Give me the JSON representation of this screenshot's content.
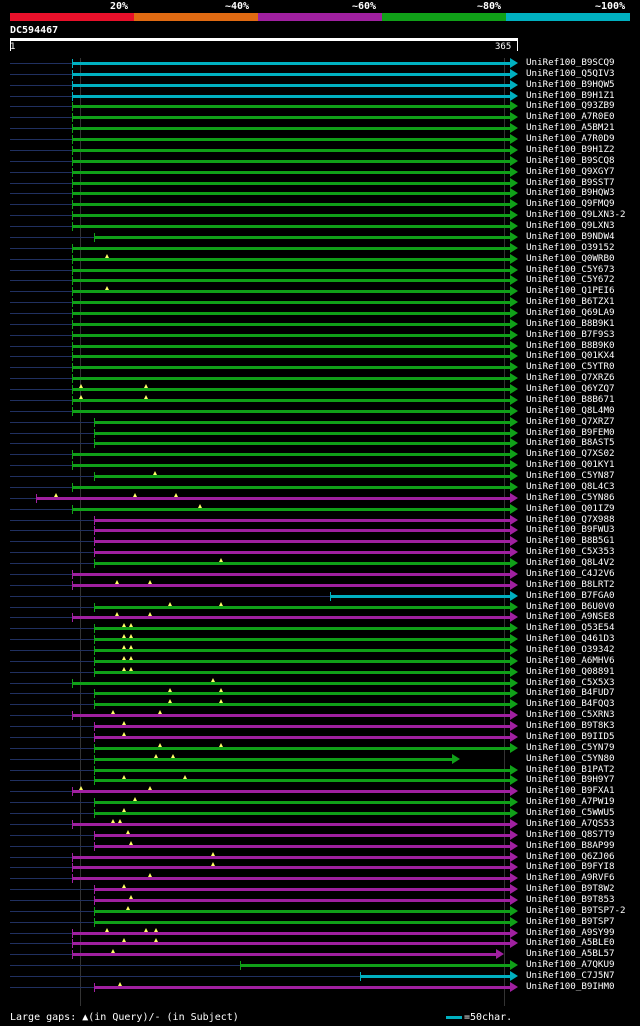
{
  "legend": {
    "labels": [
      "20%",
      "~40%",
      "~60%",
      "~80%",
      "~100%"
    ],
    "colors": [
      "#e8102a",
      "#e06a12",
      "#a020a0",
      "#10a018",
      "#00b0c0"
    ]
  },
  "query": {
    "name": "DC594467",
    "start": "1",
    "end": "365"
  },
  "footer": {
    "gaps_text": "Large gaps: ▲(in Query)/- (in Subject)",
    "scale_text": "=50char."
  },
  "rows": [
    {
      "label": "UniRef100_B9SCQ9",
      "color": "cyan",
      "start": 72,
      "end": 510,
      "arrow": true,
      "gaps": []
    },
    {
      "label": "UniRef100_Q5QIV3",
      "color": "cyan",
      "start": 72,
      "end": 510,
      "arrow": true,
      "gaps": []
    },
    {
      "label": "UniRef100_B9HQW5",
      "color": "cyan",
      "start": 72,
      "end": 510,
      "arrow": true,
      "gaps": []
    },
    {
      "label": "UniRef100_B9H1Z1",
      "color": "cyan",
      "start": 72,
      "end": 510,
      "arrow": true,
      "gaps": []
    },
    {
      "label": "UniRef100_Q93ZB9",
      "color": "green",
      "start": 72,
      "end": 510,
      "arrow": true,
      "gaps": []
    },
    {
      "label": "UniRef100_A7R0E0",
      "color": "green",
      "start": 72,
      "end": 510,
      "arrow": true,
      "gaps": []
    },
    {
      "label": "UniRef100_A5BM21",
      "color": "green",
      "start": 72,
      "end": 510,
      "arrow": true,
      "gaps": []
    },
    {
      "label": "UniRef100_A7R0D9",
      "color": "green",
      "start": 72,
      "end": 510,
      "arrow": true,
      "gaps": []
    },
    {
      "label": "UniRef100_B9H1Z2",
      "color": "green",
      "start": 72,
      "end": 510,
      "arrow": true,
      "gaps": []
    },
    {
      "label": "UniRef100_B9SCQ8",
      "color": "green",
      "start": 72,
      "end": 510,
      "arrow": true,
      "gaps": []
    },
    {
      "label": "UniRef100_Q9XGY7",
      "color": "green",
      "start": 72,
      "end": 510,
      "arrow": true,
      "gaps": []
    },
    {
      "label": "UniRef100_B9SST7",
      "color": "green",
      "start": 72,
      "end": 510,
      "arrow": true,
      "gaps": []
    },
    {
      "label": "UniRef100_B9HQW3",
      "color": "green",
      "start": 72,
      "end": 510,
      "arrow": true,
      "gaps": []
    },
    {
      "label": "UniRef100_Q9FMQ9",
      "color": "green",
      "start": 72,
      "end": 510,
      "arrow": true,
      "gaps": []
    },
    {
      "label": "UniRef100_Q9LXN3-2",
      "color": "green",
      "start": 72,
      "end": 510,
      "arrow": true,
      "gaps": []
    },
    {
      "label": "UniRef100_Q9LXN3",
      "color": "green",
      "start": 72,
      "end": 510,
      "arrow": true,
      "gaps": []
    },
    {
      "label": "UniRef100_B9NDW4",
      "color": "green",
      "start": 94,
      "end": 510,
      "arrow": true,
      "gaps": []
    },
    {
      "label": "UniRef100_O39152",
      "color": "green",
      "start": 72,
      "end": 510,
      "arrow": true,
      "gaps": []
    },
    {
      "label": "UniRef100_Q0WRB0",
      "color": "green",
      "start": 72,
      "end": 510,
      "arrow": true,
      "gaps": [
        107
      ]
    },
    {
      "label": "UniRef100_C5Y673",
      "color": "green",
      "start": 72,
      "end": 510,
      "arrow": true,
      "gaps": []
    },
    {
      "label": "UniRef100_C5Y672",
      "color": "green",
      "start": 72,
      "end": 510,
      "arrow": true,
      "gaps": []
    },
    {
      "label": "UniRef100_Q1PEI6",
      "color": "green",
      "start": 72,
      "end": 510,
      "arrow": true,
      "gaps": [
        107
      ]
    },
    {
      "label": "UniRef100_B6TZX1",
      "color": "green",
      "start": 72,
      "end": 510,
      "arrow": true,
      "gaps": []
    },
    {
      "label": "UniRef100_Q69LA9",
      "color": "green",
      "start": 72,
      "end": 510,
      "arrow": true,
      "gaps": []
    },
    {
      "label": "UniRef100_B8B9K1",
      "color": "green",
      "start": 72,
      "end": 510,
      "arrow": true,
      "gaps": []
    },
    {
      "label": "UniRef100_B7F9S3",
      "color": "green",
      "start": 72,
      "end": 510,
      "arrow": true,
      "gaps": []
    },
    {
      "label": "UniRef100_B8B9K0",
      "color": "green",
      "start": 72,
      "end": 510,
      "arrow": true,
      "gaps": []
    },
    {
      "label": "UniRef100_Q01KX4",
      "color": "green",
      "start": 72,
      "end": 510,
      "arrow": true,
      "gaps": []
    },
    {
      "label": "UniRef100_C5YTR0",
      "color": "green",
      "start": 72,
      "end": 510,
      "arrow": true,
      "gaps": []
    },
    {
      "label": "UniRef100_Q7XRZ6",
      "color": "green",
      "start": 72,
      "end": 510,
      "arrow": true,
      "gaps": []
    },
    {
      "label": "UniRef100_Q6YZQ7",
      "color": "green",
      "start": 72,
      "end": 510,
      "arrow": true,
      "gaps": [
        81,
        146
      ]
    },
    {
      "label": "UniRef100_B8B671",
      "color": "green",
      "start": 72,
      "end": 510,
      "arrow": true,
      "gaps": [
        81,
        146
      ]
    },
    {
      "label": "UniRef100_Q8L4M0",
      "color": "green",
      "start": 72,
      "end": 510,
      "arrow": true,
      "gaps": []
    },
    {
      "label": "UniRef100_Q7XRZ7",
      "color": "green",
      "start": 94,
      "end": 510,
      "arrow": true,
      "gaps": []
    },
    {
      "label": "UniRef100_B9FEM0",
      "color": "green",
      "start": 94,
      "end": 510,
      "arrow": true,
      "gaps": []
    },
    {
      "label": "UniRef100_B8AST5",
      "color": "green",
      "start": 94,
      "end": 510,
      "arrow": true,
      "gaps": []
    },
    {
      "label": "UniRef100_Q7XS02",
      "color": "green",
      "start": 72,
      "end": 510,
      "arrow": true,
      "gaps": []
    },
    {
      "label": "UniRef100_Q01KY1",
      "color": "green",
      "start": 72,
      "end": 510,
      "arrow": true,
      "gaps": []
    },
    {
      "label": "UniRef100_C5YN87",
      "color": "green",
      "start": 94,
      "end": 510,
      "arrow": true,
      "gaps": [
        155
      ]
    },
    {
      "label": "UniRef100_Q8L4C3",
      "color": "green",
      "start": 72,
      "end": 510,
      "arrow": true,
      "gaps": []
    },
    {
      "label": "UniRef100_C5YN86",
      "color": "magenta",
      "start": 36,
      "end": 510,
      "arrow": true,
      "gaps": [
        56,
        135,
        176
      ]
    },
    {
      "label": "UniRef100_Q01IZ9",
      "color": "green",
      "start": 72,
      "end": 510,
      "arrow": true,
      "gaps": [
        200
      ]
    },
    {
      "label": "UniRef100_Q7X988",
      "color": "magenta",
      "start": 94,
      "end": 510,
      "arrow": true,
      "gaps": []
    },
    {
      "label": "UniRef100_B9FWU3",
      "color": "magenta",
      "start": 94,
      "end": 510,
      "arrow": true,
      "gaps": []
    },
    {
      "label": "UniRef100_B8B5G1",
      "color": "magenta",
      "start": 94,
      "end": 510,
      "arrow": true,
      "gaps": []
    },
    {
      "label": "UniRef100_C5X353",
      "color": "magenta",
      "start": 94,
      "end": 510,
      "arrow": true,
      "gaps": []
    },
    {
      "label": "UniRef100_Q8L4V2",
      "color": "green",
      "start": 94,
      "end": 510,
      "arrow": true,
      "gaps": [
        221
      ]
    },
    {
      "label": "UniRef100_C4J2V6",
      "color": "magenta",
      "start": 72,
      "end": 510,
      "arrow": true,
      "gaps": []
    },
    {
      "label": "UniRef100_B8LRT2",
      "color": "magenta",
      "start": 72,
      "end": 510,
      "arrow": true,
      "gaps": [
        117,
        150
      ]
    },
    {
      "label": "UniRef100_B7FGA0",
      "color": "cyan",
      "start": 330,
      "end": 510,
      "arrow": true,
      "gaps": []
    },
    {
      "label": "UniRef100_B6U0V0",
      "color": "green",
      "start": 94,
      "end": 510,
      "arrow": true,
      "gaps": [
        170,
        221
      ]
    },
    {
      "label": "UniRef100_A9NSE8",
      "color": "magenta",
      "start": 72,
      "end": 510,
      "arrow": true,
      "gaps": [
        117,
        150
      ]
    },
    {
      "label": "UniRef100_Q53E54",
      "color": "green",
      "start": 94,
      "end": 510,
      "arrow": true,
      "gaps": [
        124,
        131
      ]
    },
    {
      "label": "UniRef100_Q461D3",
      "color": "green",
      "start": 94,
      "end": 510,
      "arrow": true,
      "gaps": [
        124,
        131
      ]
    },
    {
      "label": "UniRef100_O39342",
      "color": "green",
      "start": 94,
      "end": 510,
      "arrow": true,
      "gaps": [
        124,
        131
      ]
    },
    {
      "label": "UniRef100_A6MHV6",
      "color": "green",
      "start": 94,
      "end": 510,
      "arrow": true,
      "gaps": [
        124,
        131
      ]
    },
    {
      "label": "UniRef100_Q08891",
      "color": "green",
      "start": 94,
      "end": 510,
      "arrow": true,
      "gaps": [
        124,
        131
      ]
    },
    {
      "label": "UniRef100_C5X5X3",
      "color": "green",
      "start": 72,
      "end": 510,
      "arrow": true,
      "gaps": [
        213
      ]
    },
    {
      "label": "UniRef100_B4FUD7",
      "color": "green",
      "start": 94,
      "end": 510,
      "arrow": true,
      "gaps": [
        170,
        221
      ]
    },
    {
      "label": "UniRef100_B4FQQ3",
      "color": "green",
      "start": 94,
      "end": 510,
      "arrow": true,
      "gaps": [
        170,
        221
      ]
    },
    {
      "label": "UniRef100_C5XRN3",
      "color": "magenta",
      "start": 72,
      "end": 510,
      "arrow": true,
      "gaps": [
        113,
        160
      ]
    },
    {
      "label": "UniRef100_B9T8K3",
      "color": "magenta",
      "start": 94,
      "end": 510,
      "arrow": true,
      "gaps": [
        124
      ]
    },
    {
      "label": "UniRef100_B9IID5",
      "color": "magenta",
      "start": 94,
      "end": 510,
      "arrow": true,
      "gaps": [
        124
      ]
    },
    {
      "label": "UniRef100_C5YN79",
      "color": "green",
      "start": 94,
      "end": 510,
      "arrow": true,
      "gaps": [
        160,
        221
      ]
    },
    {
      "label": "UniRef100_C5YN80",
      "color": "green",
      "start": 94,
      "end": 452,
      "arrow": true,
      "gaps": [
        156,
        173
      ]
    },
    {
      "label": "UniRef100_B1PAT2",
      "color": "green",
      "start": 94,
      "end": 510,
      "arrow": true,
      "gaps": []
    },
    {
      "label": "UniRef100_B9H9Y7",
      "color": "green",
      "start": 94,
      "end": 510,
      "arrow": true,
      "gaps": [
        124,
        185
      ]
    },
    {
      "label": "UniRef100_B9FXA1",
      "color": "magenta",
      "start": 72,
      "end": 510,
      "arrow": true,
      "gaps": [
        81,
        150
      ]
    },
    {
      "label": "UniRef100_A7PW19",
      "color": "green",
      "start": 94,
      "end": 510,
      "arrow": true,
      "gaps": [
        135
      ]
    },
    {
      "label": "UniRef100_C5WWU5",
      "color": "green",
      "start": 94,
      "end": 510,
      "arrow": true,
      "gaps": [
        124
      ]
    },
    {
      "label": "UniRef100_A7QS53",
      "color": "magenta",
      "start": 72,
      "end": 510,
      "arrow": true,
      "gaps": [
        113,
        120
      ]
    },
    {
      "label": "UniRef100_Q8S7T9",
      "color": "magenta",
      "start": 94,
      "end": 510,
      "arrow": true,
      "gaps": [
        128
      ]
    },
    {
      "label": "UniRef100_B8AP99",
      "color": "magenta",
      "start": 94,
      "end": 510,
      "arrow": true,
      "gaps": [
        131
      ]
    },
    {
      "label": "UniRef100_Q6ZJ06",
      "color": "magenta",
      "start": 72,
      "end": 510,
      "arrow": true,
      "gaps": [
        213
      ]
    },
    {
      "label": "UniRef100_B9FYI8",
      "color": "magenta",
      "start": 72,
      "end": 510,
      "arrow": true,
      "gaps": [
        213
      ]
    },
    {
      "label": "UniRef100_A9RVF6",
      "color": "magenta",
      "start": 72,
      "end": 510,
      "arrow": true,
      "gaps": [
        150
      ]
    },
    {
      "label": "UniRef100_B9T8W2",
      "color": "magenta",
      "start": 94,
      "end": 510,
      "arrow": true,
      "gaps": [
        124
      ]
    },
    {
      "label": "UniRef100_B9T853",
      "color": "magenta",
      "start": 94,
      "end": 510,
      "arrow": true,
      "gaps": [
        131
      ]
    },
    {
      "label": "UniRef100_B9TSP7-2",
      "color": "green",
      "start": 94,
      "end": 510,
      "arrow": true,
      "gaps": [
        128
      ]
    },
    {
      "label": "UniRef100_B9TSP7",
      "color": "green",
      "start": 94,
      "end": 510,
      "arrow": true,
      "gaps": []
    },
    {
      "label": "UniRef100_A9SY99",
      "color": "magenta",
      "start": 72,
      "end": 510,
      "arrow": true,
      "gaps": [
        107,
        146,
        156
      ]
    },
    {
      "label": "UniRef100_A5BLE0",
      "color": "magenta",
      "start": 72,
      "end": 510,
      "arrow": true,
      "gaps": [
        124,
        156
      ]
    },
    {
      "label": "UniRef100_A5BL57",
      "color": "magenta",
      "start": 72,
      "end": 496,
      "arrow": true,
      "gaps": [
        113
      ]
    },
    {
      "label": "UniRef100_A7QKU9",
      "color": "green",
      "start": 240,
      "end": 510,
      "arrow": true,
      "gaps": []
    },
    {
      "label": "UniRef100_C7J5N7",
      "color": "cyan",
      "start": 360,
      "end": 510,
      "arrow": true,
      "gaps": []
    },
    {
      "label": "UniRef100_B9IHM0",
      "color": "magenta",
      "start": 94,
      "end": 510,
      "arrow": true,
      "gaps": [
        120
      ]
    }
  ]
}
